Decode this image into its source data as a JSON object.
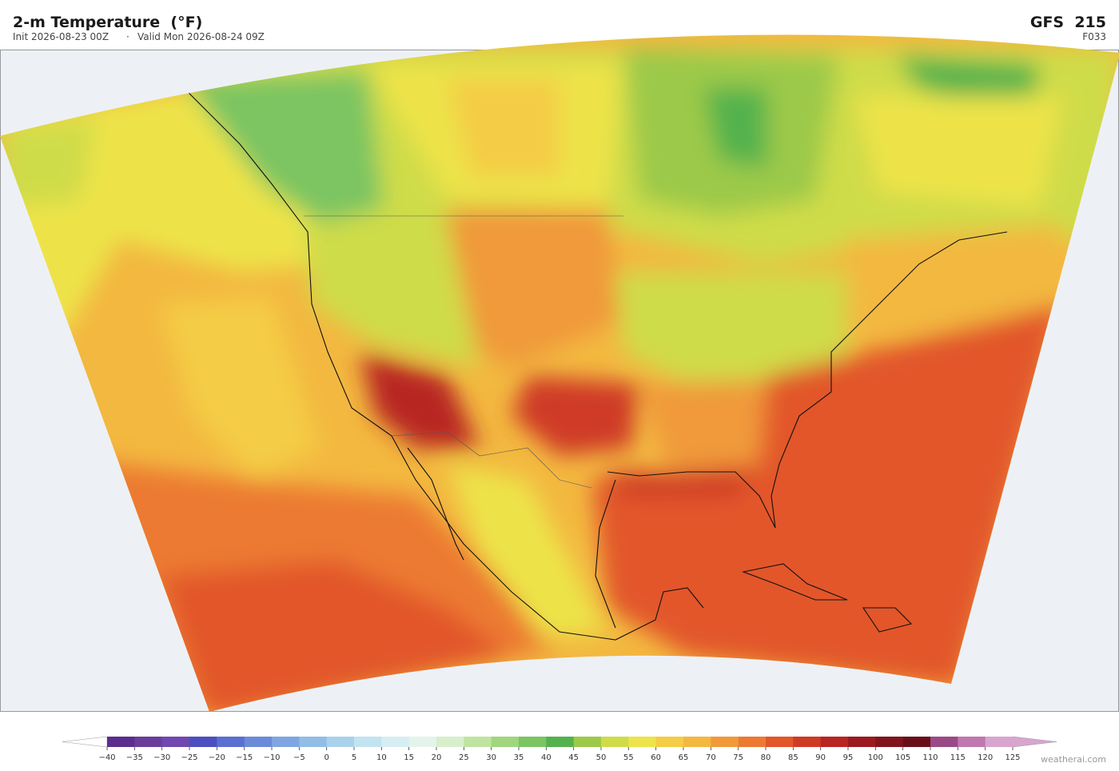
{
  "header": {
    "title": "2-m Temperature  (°F)",
    "init": "Init 2026-08-23 00Z",
    "separator": "·",
    "valid": "Valid Mon 2026-08-24 09Z"
  },
  "model": {
    "name": "GFS  215",
    "forecast": "F033"
  },
  "colorbar": {
    "ticks": [
      {
        "value": -40,
        "label": "−40"
      },
      {
        "value": -35,
        "label": "−35"
      },
      {
        "value": -30,
        "label": "−30"
      },
      {
        "value": -25,
        "label": "−25"
      },
      {
        "value": -20,
        "label": "−20"
      },
      {
        "value": -15,
        "label": "−15"
      },
      {
        "value": -10,
        "label": "−10"
      },
      {
        "value": -5,
        "label": "−5"
      },
      0,
      5,
      10,
      15,
      20,
      25,
      30,
      35,
      40,
      45,
      50,
      55,
      60,
      65,
      70,
      75,
      80,
      85,
      90,
      95,
      100,
      105,
      110,
      115,
      120,
      125
    ],
    "colors": [
      "#5b2d8e",
      "#6a3d9a",
      "#7048b0",
      "#4b4fbf",
      "#5a6fd0",
      "#6b8ad8",
      "#7fa6e0",
      "#92bde6",
      "#a9d2ec",
      "#c2e3f0",
      "#d6eef2",
      "#e4f4ec",
      "#d8efcc",
      "#bfe4a0",
      "#9fd67e",
      "#7cc562",
      "#53b24d",
      "#9cc94a",
      "#cfdc48",
      "#ede34a",
      "#f4cc45",
      "#f3b840",
      "#f09a3a",
      "#ec7a33",
      "#e2562a",
      "#cf3a25",
      "#b82522",
      "#9c1a1e",
      "#81141c",
      "#6a0f1a",
      "#9a4a86",
      "#bf78b0",
      "#d8a5cf"
    ],
    "under_color": "#ffffff",
    "over_color": "#d8a5cf"
  },
  "credit": "weatherai.com"
}
